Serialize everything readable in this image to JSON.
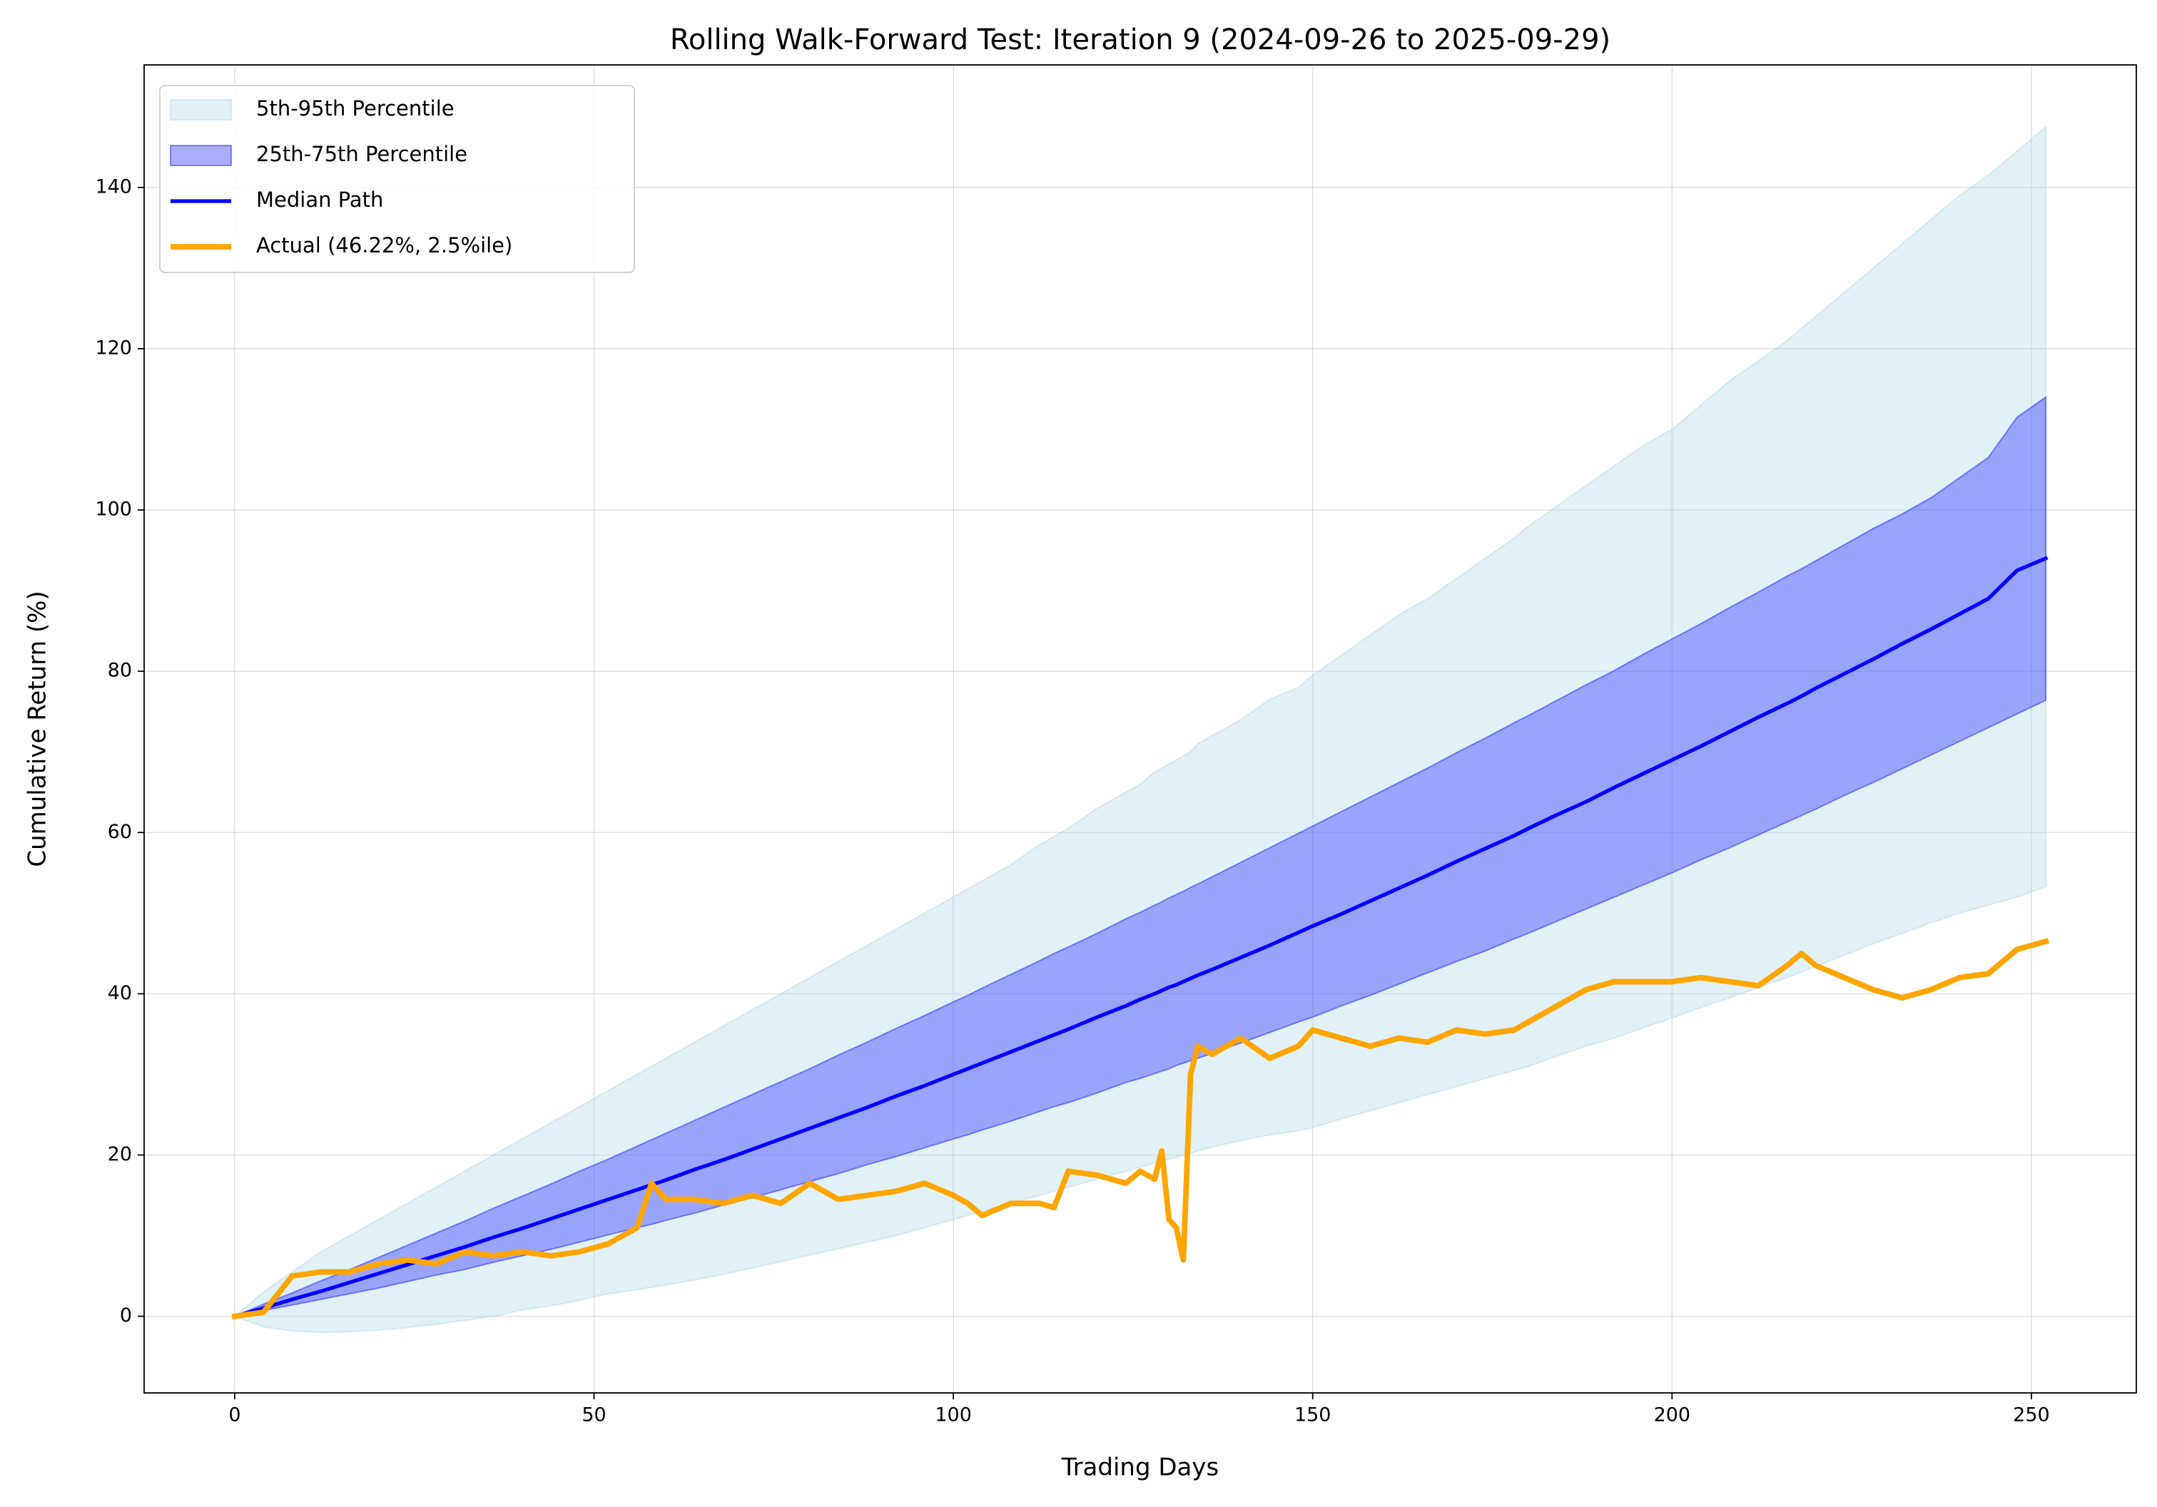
{
  "chart_data": {
    "type": "line",
    "title": "Rolling Walk-Forward Test: Iteration 9 (2024-09-26 to 2025-09-29)",
    "xlabel": "Trading Days",
    "ylabel": "Cumulative Return (%)",
    "xlim": [
      -12.6,
      264.6
    ],
    "ylim": [
      -9.5,
      155.2
    ],
    "xticks": [
      0,
      50,
      100,
      150,
      200,
      250
    ],
    "yticks": [
      0,
      20,
      40,
      60,
      80,
      100,
      120,
      140
    ],
    "grid": true,
    "legend": "upper left",
    "x": [
      0,
      4,
      8,
      12,
      16,
      20,
      24,
      28,
      32,
      36,
      40,
      44,
      48,
      52,
      56,
      58,
      60,
      64,
      68,
      72,
      76,
      80,
      84,
      88,
      92,
      96,
      100,
      102,
      104,
      108,
      112,
      114,
      116,
      120,
      124,
      126,
      128,
      129,
      130,
      131,
      132,
      133,
      134,
      136,
      140,
      144,
      148,
      150,
      154,
      158,
      162,
      166,
      170,
      174,
      178,
      180,
      184,
      188,
      192,
      196,
      200,
      204,
      208,
      212,
      216,
      218,
      220,
      224,
      228,
      232,
      236,
      240,
      244,
      248,
      252
    ],
    "series": [
      {
        "name": "5th-95th Percentile",
        "kind": "band",
        "color": "#add8e6",
        "alpha": 0.35,
        "lower": [
          0,
          -1.3,
          -1.8,
          -2,
          -1.9,
          -1.7,
          -1.4,
          -1,
          -0.5,
          0,
          0.8,
          1.3,
          2,
          2.8,
          3.3,
          3.6,
          3.9,
          4.5,
          5.2,
          6,
          6.8,
          7.6,
          8.4,
          9.2,
          10,
          11,
          12,
          12.5,
          13,
          14,
          15,
          15.5,
          16,
          17,
          18,
          18.5,
          19,
          19.2,
          19.5,
          19.7,
          20,
          20.2,
          20.5,
          21,
          21.8,
          22.5,
          23,
          23.4,
          24.5,
          25.5,
          26.5,
          27.5,
          28.5,
          29.5,
          30.5,
          31,
          32.3,
          33.5,
          34.5,
          35.8,
          37,
          38.3,
          39.5,
          40.8,
          42,
          42.7,
          43.4,
          44.8,
          46.2,
          47.5,
          48.8,
          50,
          51,
          52,
          53.3
        ],
        "upper": [
          0,
          3,
          5.5,
          8,
          10,
          12,
          14,
          16,
          18,
          20,
          22,
          24,
          26,
          28,
          30,
          31,
          32,
          34,
          36,
          38,
          40,
          42,
          44,
          46,
          48,
          50,
          52,
          53,
          54,
          56,
          58.5,
          59.5,
          60.5,
          63,
          65,
          66,
          67.5,
          68,
          68.5,
          69,
          69.5,
          70,
          71,
          72,
          74,
          76.5,
          78,
          79.5,
          82,
          84.5,
          87,
          89,
          91.5,
          94,
          96.5,
          98,
          100.5,
          103,
          105.5,
          108,
          110,
          113,
          116,
          118.5,
          121,
          122.5,
          124,
          127,
          130,
          133,
          136,
          139,
          141.5,
          144.5,
          147.5
        ]
      },
      {
        "name": "25th-75th Percentile",
        "kind": "band",
        "color": "#0000ff",
        "alpha": 0.32,
        "lower": [
          0,
          0.7,
          1.4,
          2.1,
          2.8,
          3.5,
          4.3,
          5.1,
          5.8,
          6.7,
          7.5,
          8.3,
          9.2,
          10.1,
          11,
          11.4,
          11.9,
          12.8,
          13.8,
          14.7,
          15.7,
          16.7,
          17.7,
          18.8,
          19.8,
          20.9,
          22,
          22.5,
          23.1,
          24.2,
          25.4,
          26,
          26.5,
          27.7,
          29,
          29.5,
          30.1,
          30.4,
          30.7,
          31.1,
          31.4,
          31.7,
          32,
          32.6,
          33.9,
          35.2,
          36.5,
          37.1,
          38.5,
          39.8,
          41.2,
          42.6,
          44,
          45.3,
          46.8,
          47.5,
          49,
          50.5,
          52,
          53.5,
          55,
          56.6,
          58.1,
          59.7,
          61.3,
          62.1,
          62.9,
          64.6,
          66.2,
          67.9,
          69.6,
          71.3,
          73,
          74.7,
          76.4
        ],
        "upper": [
          0,
          1.5,
          2.9,
          4.4,
          5.8,
          7.3,
          8.8,
          10.3,
          11.8,
          13.4,
          14.9,
          16.4,
          18,
          19.5,
          21.1,
          21.9,
          22.7,
          24.3,
          25.9,
          27.5,
          29.1,
          30.7,
          32.4,
          34,
          35.7,
          37.3,
          39,
          39.8,
          40.7,
          42.4,
          44.1,
          45,
          45.8,
          47.5,
          49.3,
          50.1,
          51,
          51.4,
          51.9,
          52.3,
          52.7,
          53.2,
          53.6,
          54.5,
          56.3,
          58.1,
          59.9,
          60.8,
          62.6,
          64.4,
          66.2,
          68,
          69.9,
          71.7,
          73.6,
          74.5,
          76.4,
          78.3,
          80.1,
          82.1,
          84,
          85.9,
          87.9,
          89.8,
          91.8,
          92.7,
          93.7,
          95.7,
          97.7,
          99.5,
          101.5,
          104,
          106.5,
          111.5,
          114
        ]
      },
      {
        "name": "Median Path",
        "kind": "line",
        "color": "#0000ff",
        "linewidth": 2,
        "values": [
          0,
          1,
          2.1,
          3.1,
          4.2,
          5.3,
          6.4,
          7.5,
          8.6,
          9.8,
          10.9,
          12.1,
          13.3,
          14.5,
          15.7,
          16.3,
          16.9,
          18.2,
          19.4,
          20.7,
          22,
          23.3,
          24.6,
          25.9,
          27.3,
          28.6,
          30,
          30.7,
          31.4,
          32.8,
          34.2,
          34.9,
          35.6,
          37.1,
          38.5,
          39.3,
          40,
          40.4,
          40.8,
          41.1,
          41.5,
          41.9,
          42.3,
          43,
          44.5,
          46,
          47.6,
          48.4,
          49.9,
          51.5,
          53.1,
          54.7,
          56.4,
          58,
          59.6,
          60.5,
          62.2,
          63.8,
          65.6,
          67.3,
          69,
          70.7,
          72.5,
          74.3,
          76,
          76.9,
          77.9,
          79.7,
          81.5,
          83.4,
          85.2,
          87.1,
          89,
          92.5,
          94
        ]
      },
      {
        "name": "Actual (46.22%, 2.5%ile)",
        "kind": "line",
        "color": "#ffa500",
        "linewidth": 3,
        "values": [
          0,
          0.5,
          5,
          5.5,
          5.5,
          6.5,
          7,
          6.5,
          8,
          7.5,
          8,
          7.5,
          8,
          9,
          11,
          16.5,
          14.5,
          14.5,
          14,
          15,
          14,
          16.5,
          14.5,
          15,
          15.5,
          16.5,
          15,
          14,
          12.5,
          14,
          14,
          13.5,
          18,
          17.5,
          16.5,
          18,
          17,
          20.5,
          12,
          11,
          7,
          30,
          33.5,
          32.5,
          34.5,
          32,
          33.5,
          35.5,
          34.5,
          33.5,
          34.5,
          34,
          35.5,
          35,
          35.5,
          36.5,
          38.5,
          40.5,
          41.5,
          41.5,
          41.5,
          42,
          41.5,
          41,
          43.5,
          45,
          43.5,
          42,
          40.5,
          39.5,
          40.5,
          42,
          42.5,
          45.5,
          46.5
        ]
      }
    ]
  }
}
